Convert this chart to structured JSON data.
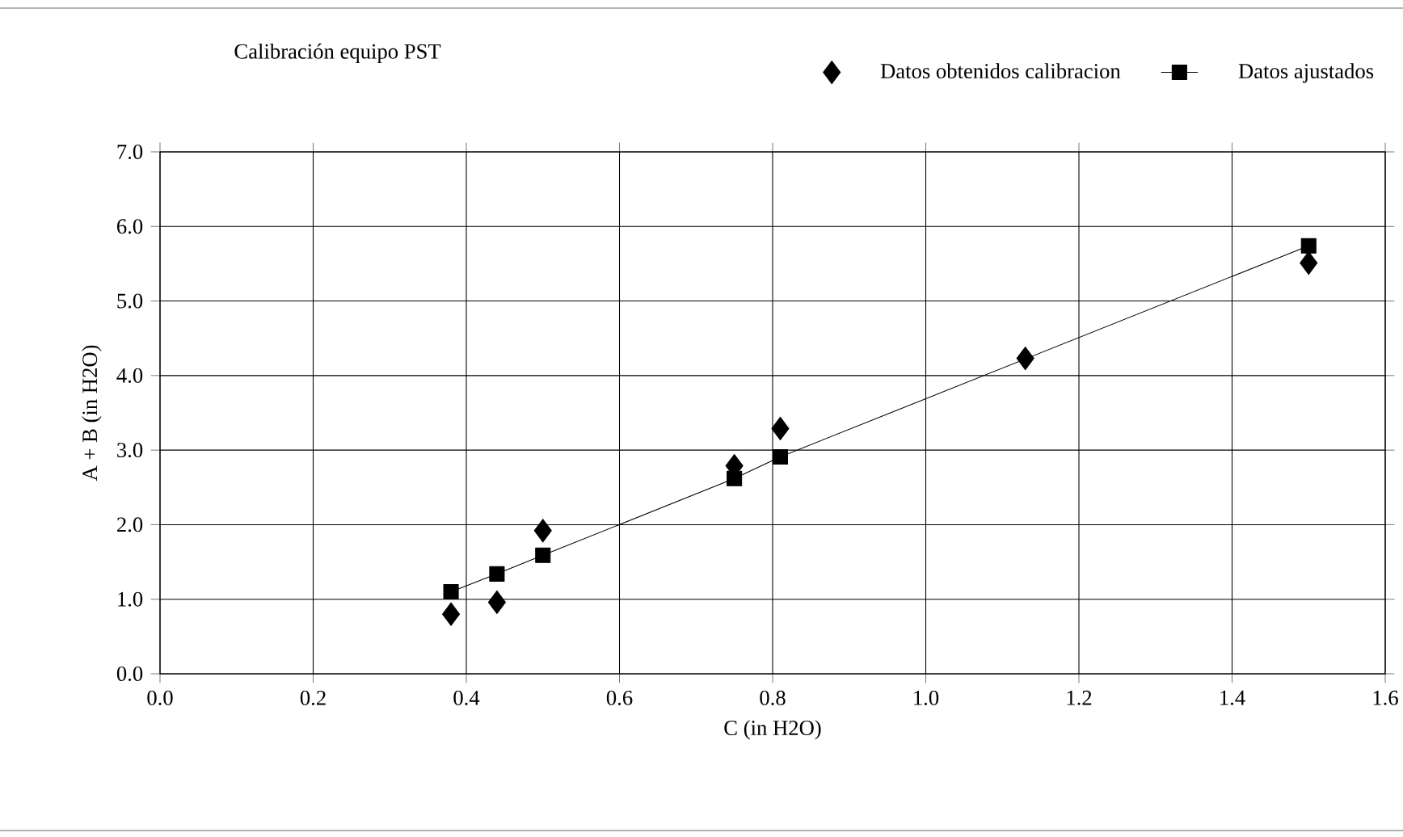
{
  "chart_data": {
    "type": "scatter",
    "title": "Calibración equipo PST",
    "xlabel": "C (in H2O)",
    "ylabel": "A + B (in H2O)",
    "series": [
      {
        "name": "Datos obtenidos calibracion",
        "marker": "diamond",
        "color": "#000000",
        "x": [
          0.38,
          0.44,
          0.5,
          0.75,
          0.81,
          1.13,
          1.5
        ],
        "values": [
          0.8,
          0.96,
          1.92,
          2.79,
          3.29,
          4.23,
          5.51
        ]
      },
      {
        "name": "Datos ajustados",
        "type": "line",
        "marker": "square",
        "line_style": "solid",
        "color": "#000000",
        "x": [
          0.38,
          0.44,
          0.5,
          0.75,
          0.81,
          1.13,
          1.5
        ],
        "values": [
          1.1,
          1.34,
          1.59,
          2.62,
          2.91,
          null,
          5.74
        ]
      }
    ],
    "xlim": [
      0,
      1.6
    ],
    "ylim": [
      0,
      7
    ],
    "xticks": [
      {
        "value": 0,
        "label": "0.0"
      },
      {
        "value": 0.2,
        "label": "0.2"
      },
      {
        "value": 0.4,
        "label": "0.4"
      },
      {
        "value": 0.6,
        "label": "0.6"
      },
      {
        "value": 0.8,
        "label": "0.8"
      },
      {
        "value": 1.0,
        "label": "1.0"
      },
      {
        "value": 1.2,
        "label": "1.2"
      },
      {
        "value": 1.4,
        "label": "1.4"
      },
      {
        "value": 1.6,
        "label": "1.6"
      }
    ],
    "yticks": [
      {
        "value": 0,
        "label": "0.0"
      },
      {
        "value": 1,
        "label": "1.0"
      },
      {
        "value": 2,
        "label": "2.0"
      },
      {
        "value": 3,
        "label": "3.0"
      },
      {
        "value": 4,
        "label": "4.0"
      },
      {
        "value": 5,
        "label": "5.0"
      },
      {
        "value": 6,
        "label": "6.0"
      },
      {
        "value": 7,
        "label": "7.0"
      }
    ],
    "grid": true,
    "legend": "top right"
  }
}
